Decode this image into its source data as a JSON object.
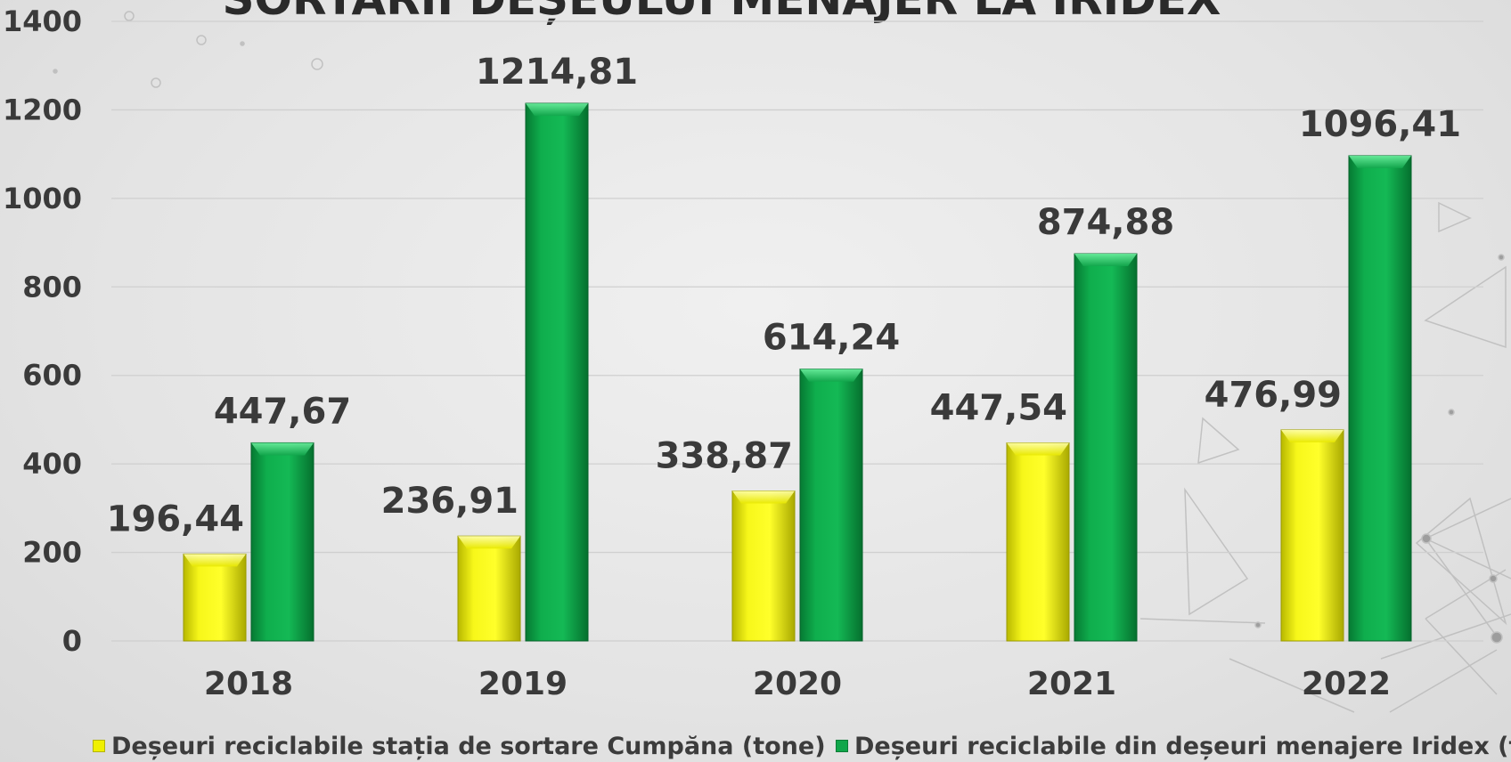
{
  "chart_data": {
    "type": "bar",
    "title": "SORTARII DEȘEULUI MENAJER LA IRIDEX",
    "categories": [
      "2018",
      "2019",
      "2020",
      "2021",
      "2022"
    ],
    "series": [
      {
        "name": "Deșeuri reciclabile stația de sortare Cumpăna (tone)",
        "color": "#f0f000",
        "values": [
          196.44,
          236.91,
          338.87,
          447.54,
          476.99
        ],
        "labels": [
          "196,44",
          "236,91",
          "338,87",
          "447,54",
          "476,99"
        ]
      },
      {
        "name": "Deșeuri reciclabile din deșeuri menajere Iridex (tone)",
        "color": "#10a64a",
        "values": [
          447.67,
          1214.81,
          614.24,
          874.88,
          1096.41
        ],
        "labels": [
          "447,67",
          "1214,81",
          "614,24",
          "874,88",
          "1096,41"
        ]
      }
    ],
    "yticks": [
      "0",
      "200",
      "400",
      "600",
      "800",
      "1000",
      "1200",
      "1400"
    ],
    "ylim": [
      0,
      1400
    ],
    "grid": true,
    "legend": "bottom"
  }
}
